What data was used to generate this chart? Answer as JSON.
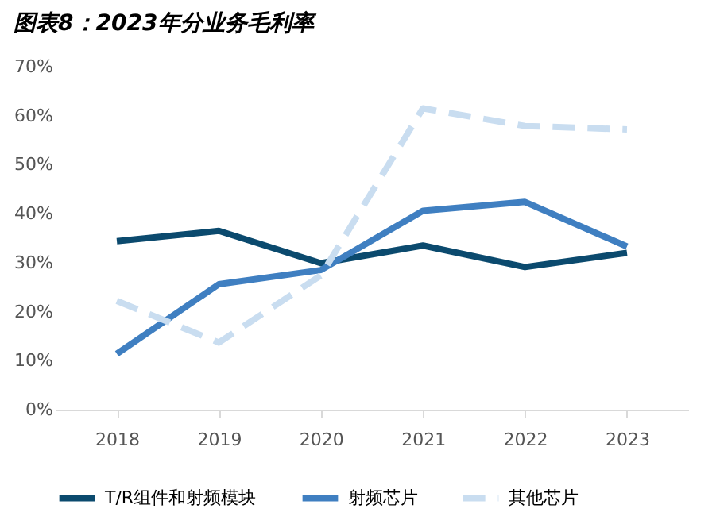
{
  "chart_data": {
    "type": "line",
    "title": "图表8：2023年分业务毛利率",
    "categories": [
      "2018",
      "2019",
      "2020",
      "2021",
      "2022",
      "2023"
    ],
    "series": [
      {
        "name": "T/R组件和射频模块",
        "color": "#0b4a6e",
        "values": [
          34.4,
          36.5,
          29.9,
          33.5,
          29.1,
          32.0
        ]
      },
      {
        "name": "射频芯片",
        "color": "#3f7fc1",
        "values": [
          11.4,
          25.6,
          28.5,
          40.6,
          42.4,
          33.3
        ]
      },
      {
        "name": "其他芯片",
        "color": "#c9ddf0",
        "values": [
          22.2,
          13.7,
          27.4,
          61.5,
          57.9,
          57.2
        ],
        "line_style": "dashed"
      }
    ],
    "ylim": [
      0,
      70
    ],
    "yticks": [
      {
        "value": 0,
        "label": "0%"
      },
      {
        "value": 10,
        "label": "10%"
      },
      {
        "value": 20,
        "label": "20%"
      },
      {
        "value": 30,
        "label": "30%"
      },
      {
        "value": 40,
        "label": "40%"
      },
      {
        "value": 50,
        "label": "50%"
      },
      {
        "value": 60,
        "label": "60%"
      },
      {
        "value": 70,
        "label": "70%"
      }
    ],
    "grid": false,
    "legend": "bottom",
    "line_style": "solid",
    "marker": "none"
  }
}
